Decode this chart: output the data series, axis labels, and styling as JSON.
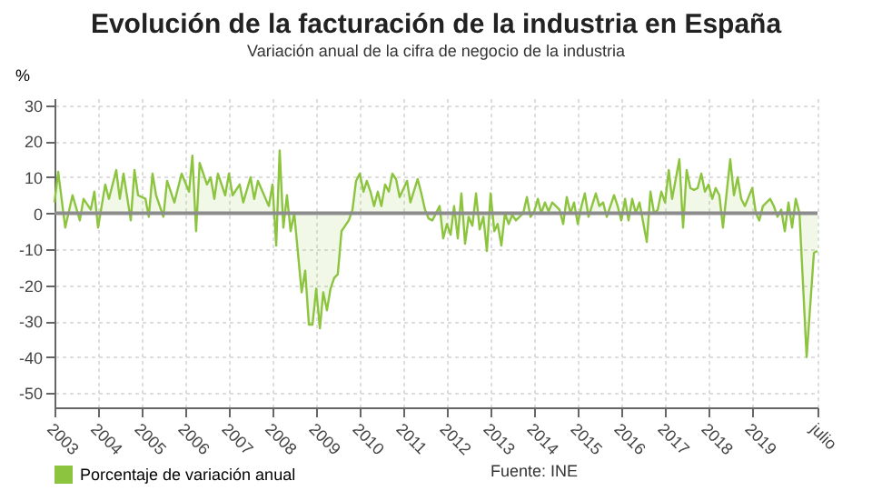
{
  "chart_data": {
    "type": "area",
    "title": "Evolución de la facturación de la industria en España",
    "subtitle": "Variación anual de la cifra de negocio de la industria",
    "ylabel": "%",
    "annotations": [
      "Fuente: INE"
    ],
    "x": [
      "2003-01",
      "2003-02",
      "2003-04",
      "2003-06",
      "2003-08",
      "2003-09",
      "2003-11",
      "2003-12",
      "2004-01",
      "2004-03",
      "2004-04",
      "2004-06",
      "2004-07",
      "2004-08",
      "2004-10",
      "2004-11",
      "2004-12",
      "2005-02",
      "2005-03",
      "2005-04",
      "2005-05",
      "2005-07",
      "2005-08",
      "2005-10",
      "2005-12",
      "2006-02",
      "2006-03",
      "2006-04",
      "2006-05",
      "2006-07",
      "2006-08",
      "2006-09",
      "2006-10",
      "2006-12",
      "2007-01",
      "2007-02",
      "2007-04",
      "2007-05",
      "2007-07",
      "2007-08",
      "2007-09",
      "2007-12",
      "2008-01",
      "2008-02",
      "2008-03",
      "2008-04",
      "2008-05",
      "2008-06",
      "2008-07",
      "2008-09",
      "2008-10",
      "2008-11",
      "2008-12",
      "2009-01",
      "2009-02",
      "2009-03",
      "2009-04",
      "2009-05",
      "2009-06",
      "2009-07",
      "2009-08",
      "2009-10",
      "2009-11",
      "2009-12",
      "2010-01",
      "2010-02",
      "2010-03",
      "2010-04",
      "2010-05",
      "2010-06",
      "2010-07",
      "2010-08",
      "2010-09",
      "2010-10",
      "2010-11",
      "2010-12",
      "2011-02",
      "2011-03",
      "2011-05",
      "2011-06",
      "2011-07",
      "2011-08",
      "2011-09",
      "2011-11",
      "2011-12",
      "2012-01",
      "2012-02",
      "2012-03",
      "2012-04",
      "2012-05",
      "2012-06",
      "2012-07",
      "2012-08",
      "2012-09",
      "2012-10",
      "2012-11",
      "2012-12",
      "2013-01",
      "2013-02",
      "2013-03",
      "2013-04",
      "2013-05",
      "2013-06",
      "2013-07",
      "2013-08",
      "2013-10",
      "2013-11",
      "2013-12",
      "2014-01",
      "2014-02",
      "2014-03",
      "2014-04",
      "2014-05",
      "2014-06",
      "2014-08",
      "2014-09",
      "2014-10",
      "2014-11",
      "2014-12",
      "2015-01",
      "2015-02",
      "2015-03",
      "2015-04",
      "2015-06",
      "2015-07",
      "2015-08",
      "2015-09",
      "2015-10",
      "2015-11",
      "2015-12",
      "2016-01",
      "2016-02",
      "2016-03",
      "2016-04",
      "2016-05",
      "2016-06",
      "2016-08",
      "2016-09",
      "2016-10",
      "2016-11",
      "2016-12",
      "2017-01",
      "2017-02",
      "2017-03",
      "2017-05",
      "2017-06",
      "2017-07",
      "2017-08",
      "2017-09",
      "2017-10",
      "2017-11",
      "2017-12",
      "2018-01",
      "2018-02",
      "2018-03",
      "2018-04",
      "2018-05",
      "2018-07",
      "2018-08",
      "2018-09",
      "2018-10",
      "2018-11",
      "2019-01",
      "2019-02",
      "2019-03",
      "2019-04",
      "2019-06",
      "2019-07",
      "2019-08",
      "2019-09",
      "2019-10",
      "2019-11",
      "2019-12",
      "2020-01",
      "2020-02",
      "2020-04",
      "2020-06",
      "2020-07"
    ],
    "series": [
      {
        "name": "Porcentaje de variación anual",
        "color": "#8cc43f",
        "values": [
          3,
          11.5,
          -4,
          5,
          -2,
          4,
          1,
          6,
          -4,
          8,
          4,
          12,
          4,
          11,
          -2,
          12,
          5,
          4,
          -1,
          11,
          5,
          -1,
          9,
          3,
          11,
          6,
          16,
          -5,
          14,
          8,
          10,
          4,
          11,
          5,
          11,
          5,
          8,
          3,
          10,
          4,
          9,
          2,
          8,
          -9,
          17.5,
          -4,
          5,
          -5,
          0,
          -22,
          -16,
          -31,
          -31,
          -21,
          -32,
          -22,
          -27,
          -21,
          -18,
          -17,
          -5,
          -2,
          1,
          9,
          11,
          6,
          9,
          6,
          2,
          6,
          2,
          8,
          6,
          11,
          9.5,
          4.5,
          9,
          3,
          9.5,
          5.5,
          1,
          -1.5,
          -2,
          2,
          -7,
          -3,
          -6,
          2,
          -7,
          5.5,
          -8.5,
          -1,
          -3.5,
          5.5,
          -4.5,
          -1,
          -10.5,
          5.5,
          -5,
          -3,
          -9,
          0,
          -3,
          -0.5,
          -2,
          0,
          4.5,
          -1,
          0.5,
          4,
          0,
          3,
          0.5,
          3,
          1,
          -3,
          4.5,
          0,
          3,
          -3,
          2,
          5.5,
          -1,
          5.5,
          2,
          3,
          -1,
          2,
          5,
          2,
          -2,
          4,
          -2,
          4,
          0,
          3,
          -8,
          6,
          0,
          1,
          6,
          3,
          12,
          4,
          15,
          -4,
          12,
          7,
          6.5,
          7,
          11,
          6,
          8,
          4,
          7,
          5,
          -4,
          15,
          5,
          10,
          4,
          2,
          7,
          0,
          -2,
          2,
          4,
          2,
          -1,
          1,
          -5,
          3,
          -4,
          4,
          0,
          -40,
          -11,
          -10.5
        ]
      }
    ],
    "xlim": [
      "2003",
      "2020-07"
    ],
    "xticks": [
      {
        "value": "2003",
        "label": "2003"
      },
      {
        "value": "2004",
        "label": "2004"
      },
      {
        "value": "2005",
        "label": "2005"
      },
      {
        "value": "2006",
        "label": "2006"
      },
      {
        "value": "2007",
        "label": "2007"
      },
      {
        "value": "2008",
        "label": "2008"
      },
      {
        "value": "2009",
        "label": "2009"
      },
      {
        "value": "2010",
        "label": "2010"
      },
      {
        "value": "2011",
        "label": "2011"
      },
      {
        "value": "2012",
        "label": "2012"
      },
      {
        "value": "2013",
        "label": "2013"
      },
      {
        "value": "2014",
        "label": "2014"
      },
      {
        "value": "2015",
        "label": "2015"
      },
      {
        "value": "2016",
        "label": "2016"
      },
      {
        "value": "2017",
        "label": "2017"
      },
      {
        "value": "2018",
        "label": "2018"
      },
      {
        "value": "2019",
        "label": "2019"
      },
      {
        "value": "2020-07",
        "label": "julio"
      }
    ],
    "ylim": [
      -54,
      32
    ],
    "yticks": [
      -50,
      -40,
      -30,
      -20,
      -10,
      0,
      10,
      20,
      30
    ],
    "ref_lines": [
      {
        "axis": "y",
        "value": 0,
        "color": "#8c8c8c"
      }
    ],
    "grid": true,
    "legend": "bottom"
  }
}
